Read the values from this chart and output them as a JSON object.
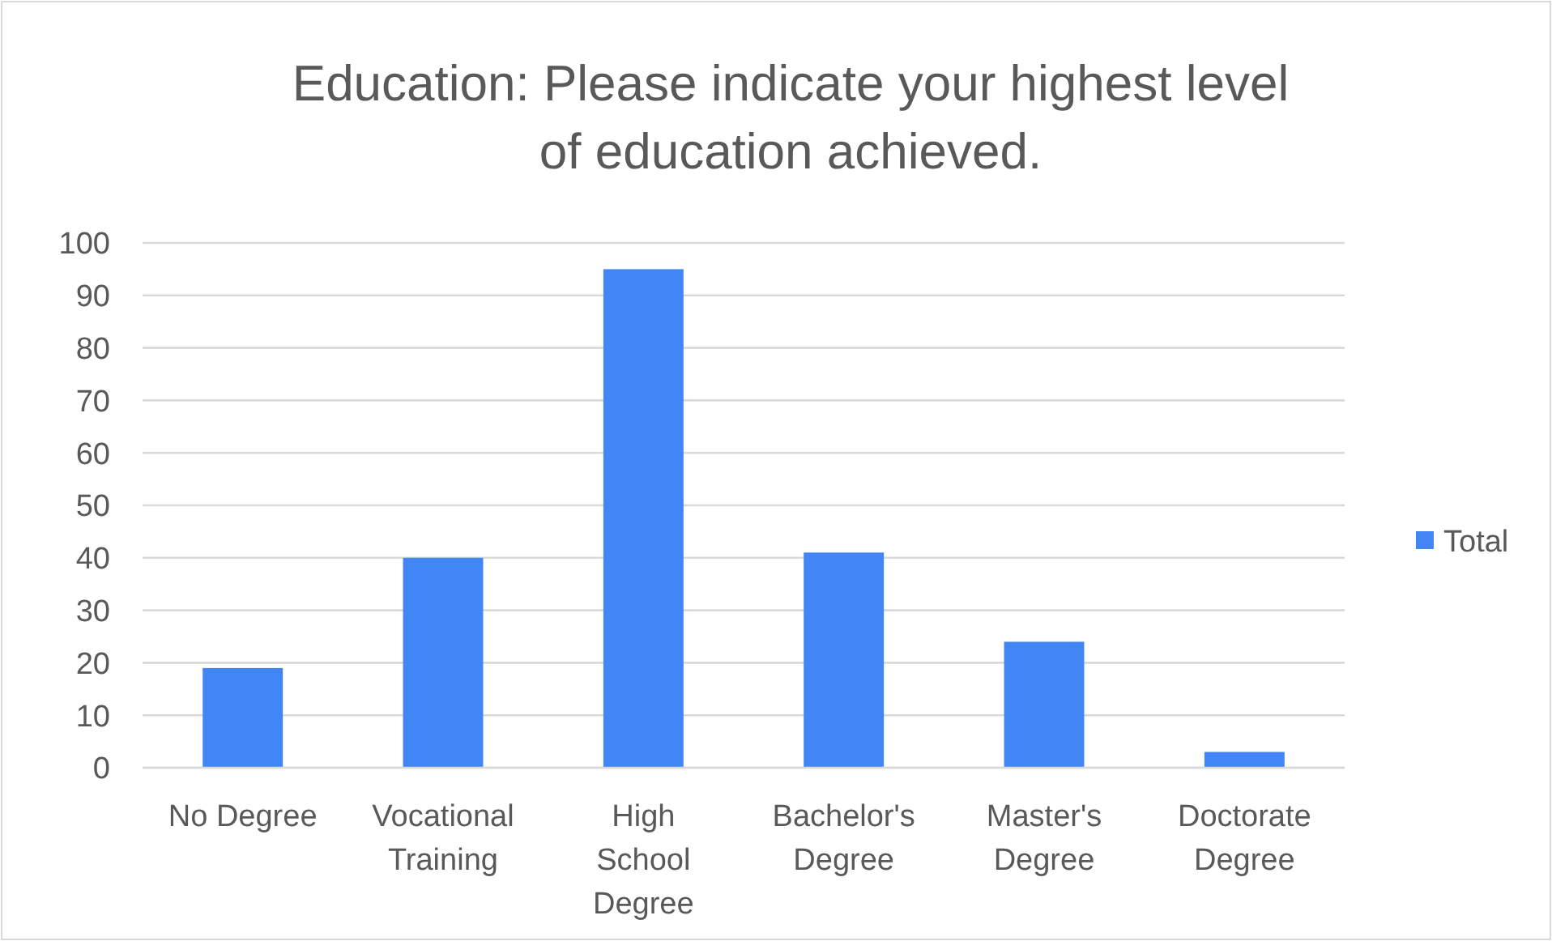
{
  "chart_data": {
    "type": "bar",
    "title": "Education: Please indicate your highest level of education achieved.",
    "categories": [
      "No Degree",
      "Vocational Training",
      "High School Degree",
      "Bachelor's Degree",
      "Master's Degree",
      "Doctorate Degree"
    ],
    "series": [
      {
        "name": "Total",
        "color": "#4285f4",
        "values": [
          19,
          40,
          95,
          41,
          24,
          3
        ]
      }
    ],
    "ylim": [
      0,
      100
    ],
    "yticks": [
      0,
      10,
      20,
      30,
      40,
      50,
      60,
      70,
      80,
      90,
      100
    ],
    "grid": "y",
    "legend": "right"
  }
}
